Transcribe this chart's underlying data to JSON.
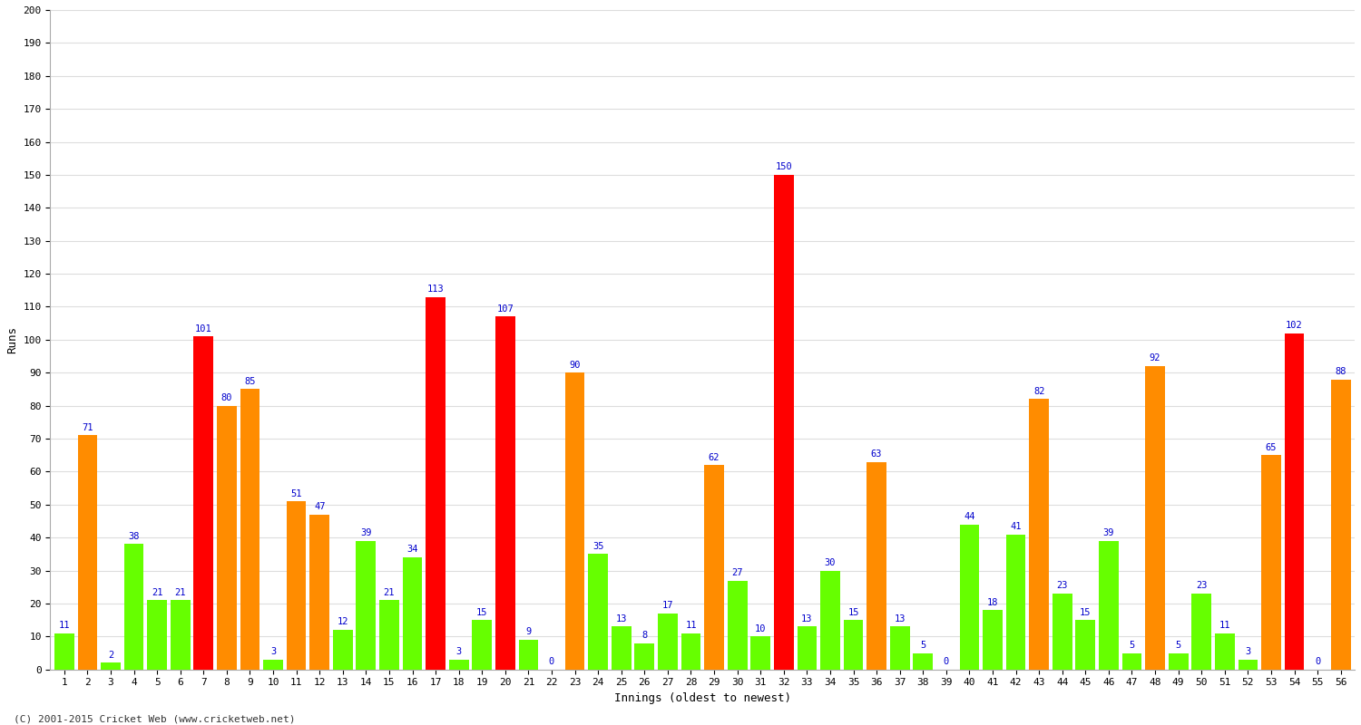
{
  "title": "",
  "xlabel": "Innings (oldest to newest)",
  "ylabel": "Runs",
  "ylim": [
    0,
    200
  ],
  "yticks": [
    0,
    10,
    20,
    30,
    40,
    50,
    60,
    70,
    80,
    90,
    100,
    110,
    120,
    130,
    140,
    150,
    160,
    170,
    180,
    190,
    200
  ],
  "footer": "(C) 2001-2015 Cricket Web (www.cricketweb.net)",
  "innings": [
    1,
    2,
    3,
    4,
    5,
    6,
    7,
    8,
    9,
    10,
    11,
    12,
    13,
    14,
    15,
    16,
    17,
    18,
    19,
    20,
    21,
    22,
    23,
    24,
    25,
    26,
    27,
    28,
    29,
    30,
    31,
    32,
    33,
    34,
    35,
    36,
    37,
    38,
    39,
    40,
    41,
    42,
    43,
    44,
    45,
    46,
    47,
    48,
    49,
    50,
    51,
    52,
    53,
    54,
    55,
    56
  ],
  "values": [
    11,
    71,
    2,
    38,
    21,
    21,
    101,
    80,
    85,
    3,
    51,
    47,
    12,
    39,
    21,
    34,
    113,
    3,
    15,
    107,
    9,
    0,
    90,
    35,
    13,
    8,
    17,
    11,
    62,
    27,
    10,
    150,
    13,
    30,
    15,
    63,
    13,
    5,
    0,
    44,
    18,
    41,
    82,
    23,
    15,
    39,
    5,
    92,
    5,
    23,
    11,
    3,
    65,
    102,
    0,
    88
  ],
  "colors": [
    "#66ff00",
    "#ff8c00",
    "#66ff00",
    "#66ff00",
    "#66ff00",
    "#66ff00",
    "#ff0000",
    "#ff8c00",
    "#ff8c00",
    "#66ff00",
    "#ff8c00",
    "#ff8c00",
    "#66ff00",
    "#66ff00",
    "#66ff00",
    "#66ff00",
    "#ff0000",
    "#66ff00",
    "#66ff00",
    "#ff0000",
    "#66ff00",
    "#66ff00",
    "#ff8c00",
    "#66ff00",
    "#66ff00",
    "#66ff00",
    "#66ff00",
    "#66ff00",
    "#ff8c00",
    "#66ff00",
    "#66ff00",
    "#ff0000",
    "#66ff00",
    "#66ff00",
    "#66ff00",
    "#ff8c00",
    "#66ff00",
    "#66ff00",
    "#66ff00",
    "#66ff00",
    "#66ff00",
    "#66ff00",
    "#ff8c00",
    "#66ff00",
    "#66ff00",
    "#66ff00",
    "#66ff00",
    "#ff8c00",
    "#66ff00",
    "#66ff00",
    "#66ff00",
    "#66ff00",
    "#ff8c00",
    "#ff0000",
    "#66ff00",
    "#ff8c00"
  ],
  "bg_color": "#ffffff",
  "grid_color": "#dddddd",
  "label_color": "#0000cc",
  "label_fontsize": 7.5,
  "bar_width": 0.85,
  "axis_label_fontsize": 9,
  "tick_fontsize": 8
}
